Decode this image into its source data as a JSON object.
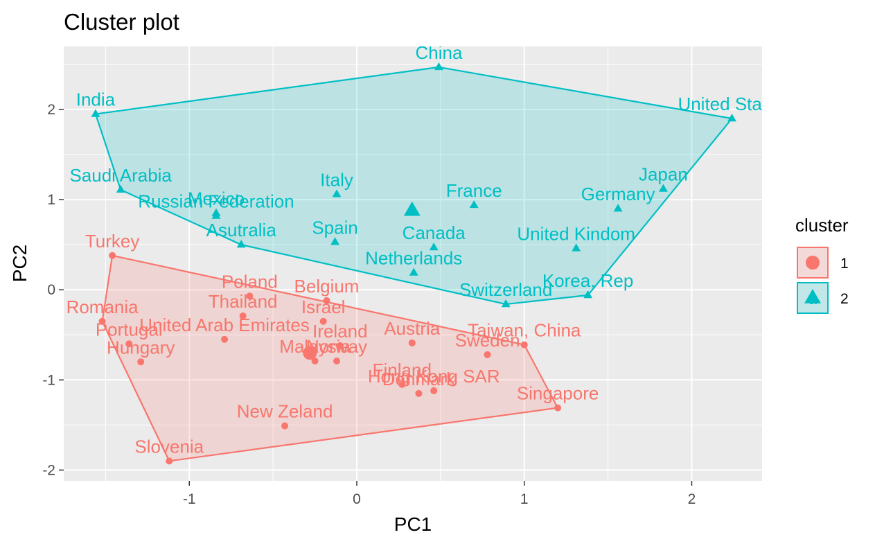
{
  "chart_data": {
    "type": "scatter",
    "title": "Cluster plot",
    "xlabel": "PC1",
    "ylabel": "PC2",
    "xlim": [
      -1.75,
      2.42
    ],
    "ylim": [
      -2.12,
      2.7
    ],
    "x_ticks": [
      -1,
      0,
      1,
      2
    ],
    "y_ticks": [
      -2,
      -1,
      0,
      1,
      2
    ],
    "grid": true,
    "legend_position": "right",
    "legend": {
      "title": "cluster",
      "entries": [
        {
          "label": "1",
          "color": "#F8766D",
          "shape": "circle",
          "key_glyph": "a"
        },
        {
          "label": "2",
          "color": "#00BFC4",
          "shape": "triangle",
          "key_glyph": "a"
        }
      ]
    },
    "clusters": [
      {
        "name": "1",
        "color": "#F8766D",
        "shape": "circle",
        "centroid": [
          -0.28,
          -0.7
        ],
        "hull": [
          [
            -1.46,
            0.38
          ],
          [
            1.0,
            -0.61
          ],
          [
            1.2,
            -1.31
          ],
          [
            -1.12,
            -1.9
          ],
          [
            -1.52,
            -0.35
          ]
        ],
        "points": [
          {
            "label": "Turkey",
            "x": -1.46,
            "y": 0.38
          },
          {
            "label": "Romania",
            "x": -1.52,
            "y": -0.35
          },
          {
            "label": "Portugal",
            "x": -1.36,
            "y": -0.6
          },
          {
            "label": "Hungary",
            "x": -1.29,
            "y": -0.8
          },
          {
            "label": "United Arab Emirates",
            "x": -0.79,
            "y": -0.55
          },
          {
            "label": "Thailand",
            "x": -0.68,
            "y": -0.29
          },
          {
            "label": "Poland",
            "x": -0.64,
            "y": -0.07
          },
          {
            "label": "Belgium",
            "x": -0.18,
            "y": -0.12
          },
          {
            "label": "Israel",
            "x": -0.2,
            "y": -0.35
          },
          {
            "label": "Ireland",
            "x": -0.1,
            "y": -0.62
          },
          {
            "label": "Malaysia",
            "x": -0.25,
            "y": -0.79
          },
          {
            "label": "Norway",
            "x": -0.12,
            "y": -0.79
          },
          {
            "label": "Austria",
            "x": 0.33,
            "y": -0.59
          },
          {
            "label": "Taiwan, China",
            "x": 1.0,
            "y": -0.61
          },
          {
            "label": "Sweden",
            "x": 0.78,
            "y": -0.72
          },
          {
            "label": "Finland",
            "x": 0.27,
            "y": -1.05
          },
          {
            "label": "Hong Kong SAR",
            "x": 0.46,
            "y": -1.12
          },
          {
            "label": "Denmark",
            "x": 0.37,
            "y": -1.15
          },
          {
            "label": "Singapore",
            "x": 1.2,
            "y": -1.31
          },
          {
            "label": "New Zeland",
            "x": -0.43,
            "y": -1.51
          },
          {
            "label": "Slovenia",
            "x": -1.12,
            "y": -1.9
          }
        ]
      },
      {
        "name": "2",
        "color": "#00BFC4",
        "shape": "triangle",
        "centroid": [
          0.33,
          0.88
        ],
        "hull": [
          [
            -1.56,
            1.95
          ],
          [
            0.49,
            2.47
          ],
          [
            2.24,
            1.9
          ],
          [
            1.38,
            -0.06
          ],
          [
            0.89,
            -0.16
          ],
          [
            -0.69,
            0.5
          ],
          [
            -1.41,
            1.11
          ]
        ],
        "points": [
          {
            "label": "India",
            "x": -1.56,
            "y": 1.95
          },
          {
            "label": "China",
            "x": 0.49,
            "y": 2.47
          },
          {
            "label": "United States",
            "x": 2.24,
            "y": 1.9
          },
          {
            "label": "Saudi Arabia",
            "x": -1.41,
            "y": 1.11
          },
          {
            "label": "Russian Federation",
            "x": -0.84,
            "y": 0.82
          },
          {
            "label": "Mexico",
            "x": -0.84,
            "y": 0.85
          },
          {
            "label": "Italy",
            "x": -0.12,
            "y": 1.06
          },
          {
            "label": "France",
            "x": 0.7,
            "y": 0.94
          },
          {
            "label": "Japan",
            "x": 1.83,
            "y": 1.12
          },
          {
            "label": "Germany",
            "x": 1.56,
            "y": 0.9
          },
          {
            "label": "Asutralia",
            "x": -0.69,
            "y": 0.5
          },
          {
            "label": "Spain",
            "x": -0.13,
            "y": 0.53
          },
          {
            "label": "Canada",
            "x": 0.46,
            "y": 0.47
          },
          {
            "label": "Netherlands",
            "x": 0.34,
            "y": 0.19
          },
          {
            "label": "United Kindom",
            "x": 1.31,
            "y": 0.46
          },
          {
            "label": "Switzerland",
            "x": 0.89,
            "y": -0.16
          },
          {
            "label": "Korea, Rep",
            "x": 1.38,
            "y": -0.06
          }
        ]
      }
    ]
  }
}
